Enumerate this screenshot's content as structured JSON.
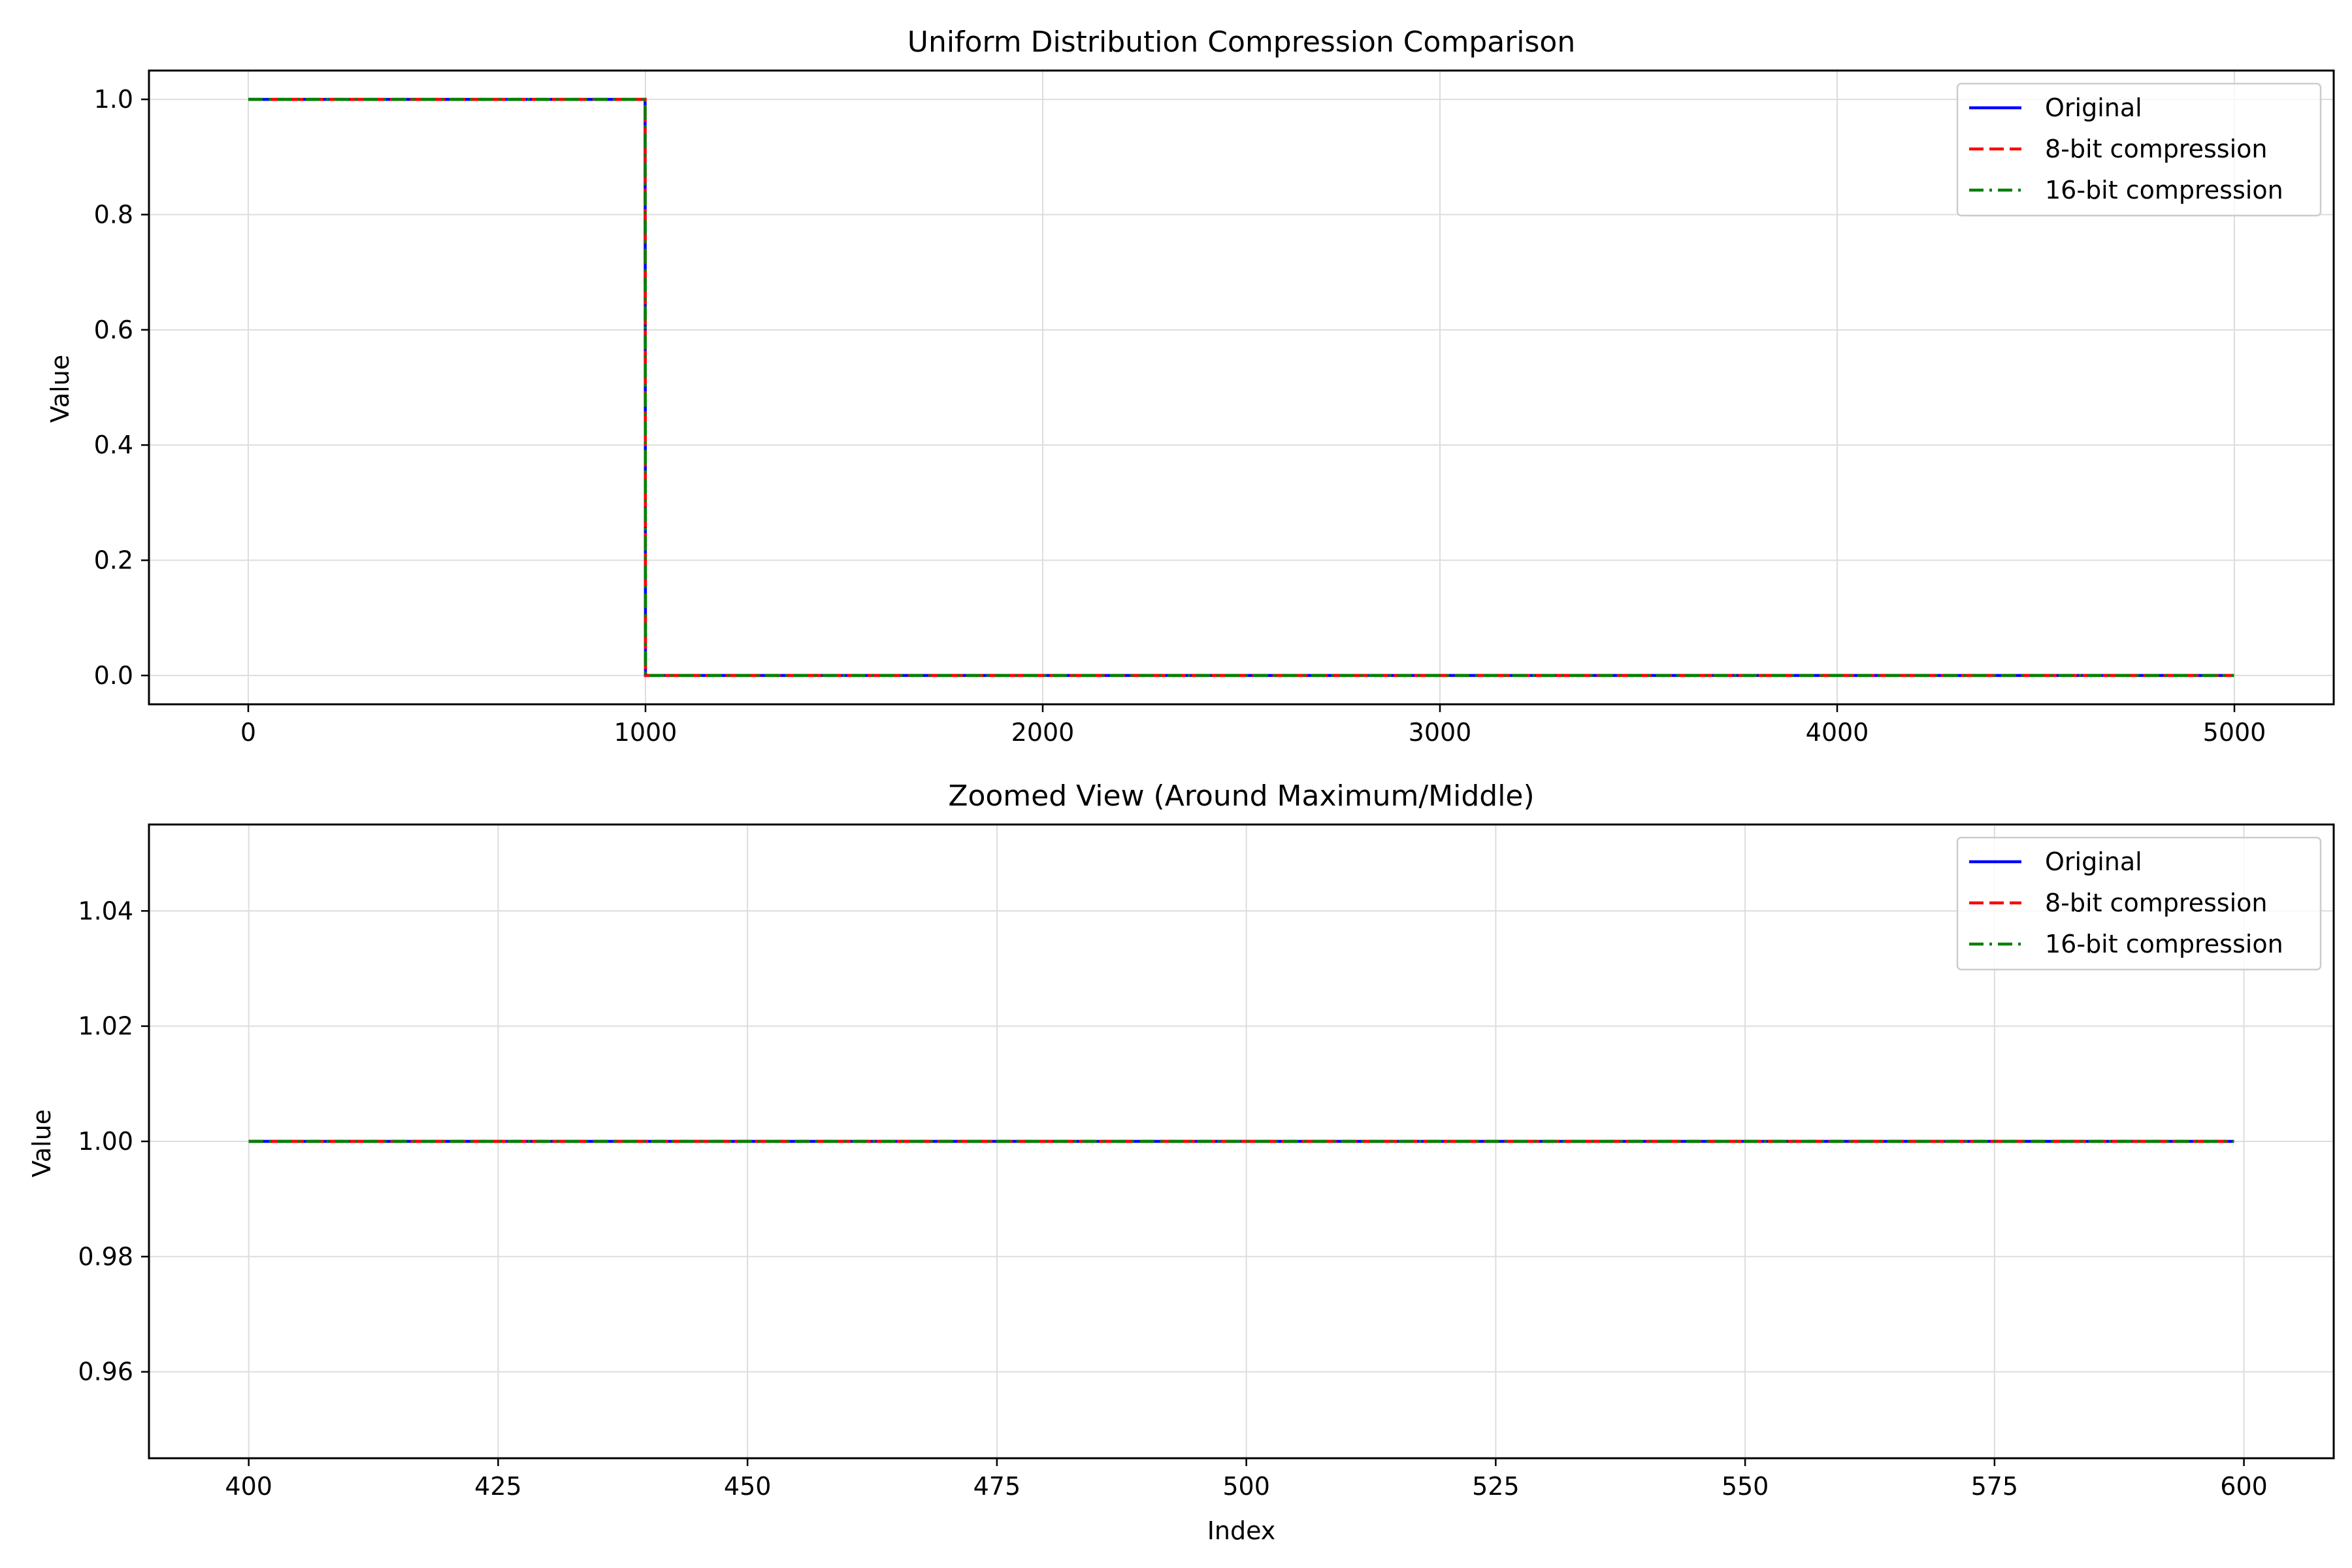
{
  "colors": {
    "background": "#ffffff",
    "grid": "#dddddd",
    "axes": "#000000"
  },
  "chart_data": [
    {
      "type": "line",
      "title": "Uniform Distribution Compression Comparison",
      "xlabel": "",
      "ylabel": "Value",
      "xlim": [
        -250,
        5250
      ],
      "ylim": [
        -0.05,
        1.05
      ],
      "xticks": [
        0,
        1000,
        2000,
        3000,
        4000,
        5000
      ],
      "xtick_labels": [
        "0",
        "1000",
        "2000",
        "3000",
        "4000",
        "5000"
      ],
      "yticks": [
        0.0,
        0.2,
        0.4,
        0.6,
        0.8,
        1.0
      ],
      "ytick_labels": [
        "0.0",
        "0.2",
        "0.4",
        "0.6",
        "0.8",
        "1.0"
      ],
      "grid": true,
      "legend_position": "top-right",
      "series": [
        {
          "name": "Original",
          "color": "#0000ff",
          "dash": "solid",
          "x": [
            0,
            999,
            1000,
            4999
          ],
          "y": [
            1,
            1,
            0,
            0
          ]
        },
        {
          "name": "8-bit compression",
          "color": "#ff0000",
          "dash": "dashed",
          "x": [
            0,
            999,
            1000,
            4999
          ],
          "y": [
            1,
            1,
            0,
            0
          ]
        },
        {
          "name": "16-bit compression",
          "color": "#008000",
          "dash": "dashdot",
          "x": [
            0,
            999,
            1000,
            4999
          ],
          "y": [
            1,
            1,
            0,
            0
          ]
        }
      ]
    },
    {
      "type": "line",
      "title": "Zoomed View (Around Maximum/Middle)",
      "xlabel": "Index",
      "ylabel": "Value",
      "xlim": [
        390,
        609
      ],
      "ylim": [
        0.945,
        1.055
      ],
      "xticks": [
        400,
        425,
        450,
        475,
        500,
        525,
        550,
        575,
        600
      ],
      "xtick_labels": [
        "400",
        "425",
        "450",
        "475",
        "500",
        "525",
        "550",
        "575",
        "600"
      ],
      "yticks": [
        0.96,
        0.98,
        1.0,
        1.02,
        1.04
      ],
      "ytick_labels": [
        "0.96",
        "0.98",
        "1.00",
        "1.02",
        "1.04"
      ],
      "grid": true,
      "legend_position": "top-right",
      "series": [
        {
          "name": "Original",
          "color": "#0000ff",
          "dash": "solid",
          "x": [
            400,
            599
          ],
          "y": [
            1,
            1
          ]
        },
        {
          "name": "8-bit compression",
          "color": "#ff0000",
          "dash": "dashed",
          "x": [
            400,
            599
          ],
          "y": [
            1,
            1
          ]
        },
        {
          "name": "16-bit compression",
          "color": "#008000",
          "dash": "dashdot",
          "x": [
            400,
            599
          ],
          "y": [
            1,
            1
          ]
        }
      ]
    }
  ]
}
